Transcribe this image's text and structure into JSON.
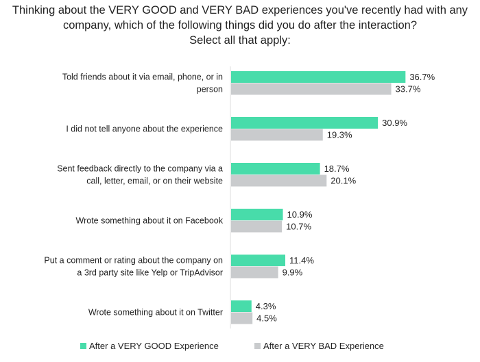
{
  "chart_data": {
    "type": "bar",
    "orientation": "horizontal",
    "title_lines": [
      "Thinking about the VERY GOOD and VERY BAD experiences you've recently had with any",
      "company, which of the following things did you do after the interaction?",
      "Select all that apply:"
    ],
    "categories": [
      [
        "Told friends about it via email, phone, or in",
        "person"
      ],
      [
        "I did not tell anyone about the experience"
      ],
      [
        "Sent feedback directly to the company via a",
        "call, letter, email, or on their website"
      ],
      [
        "Wrote something about it on Facebook"
      ],
      [
        "Put a comment or rating about the company on",
        "a 3rd party site like Yelp or TripAdvisor"
      ],
      [
        "Wrote something about it on Twitter"
      ]
    ],
    "series": [
      {
        "name": "After a VERY GOOD Experience",
        "color": "#48dcaa",
        "values": [
          36.7,
          30.9,
          18.7,
          10.9,
          11.4,
          4.3
        ]
      },
      {
        "name": "After a VERY BAD Experience",
        "color": "#c9cbcd",
        "values": [
          33.7,
          19.3,
          20.1,
          10.7,
          9.9,
          4.5
        ]
      }
    ],
    "value_suffix": "%",
    "xlim": [
      0,
      40
    ],
    "grid": false,
    "legend_position": "bottom"
  }
}
